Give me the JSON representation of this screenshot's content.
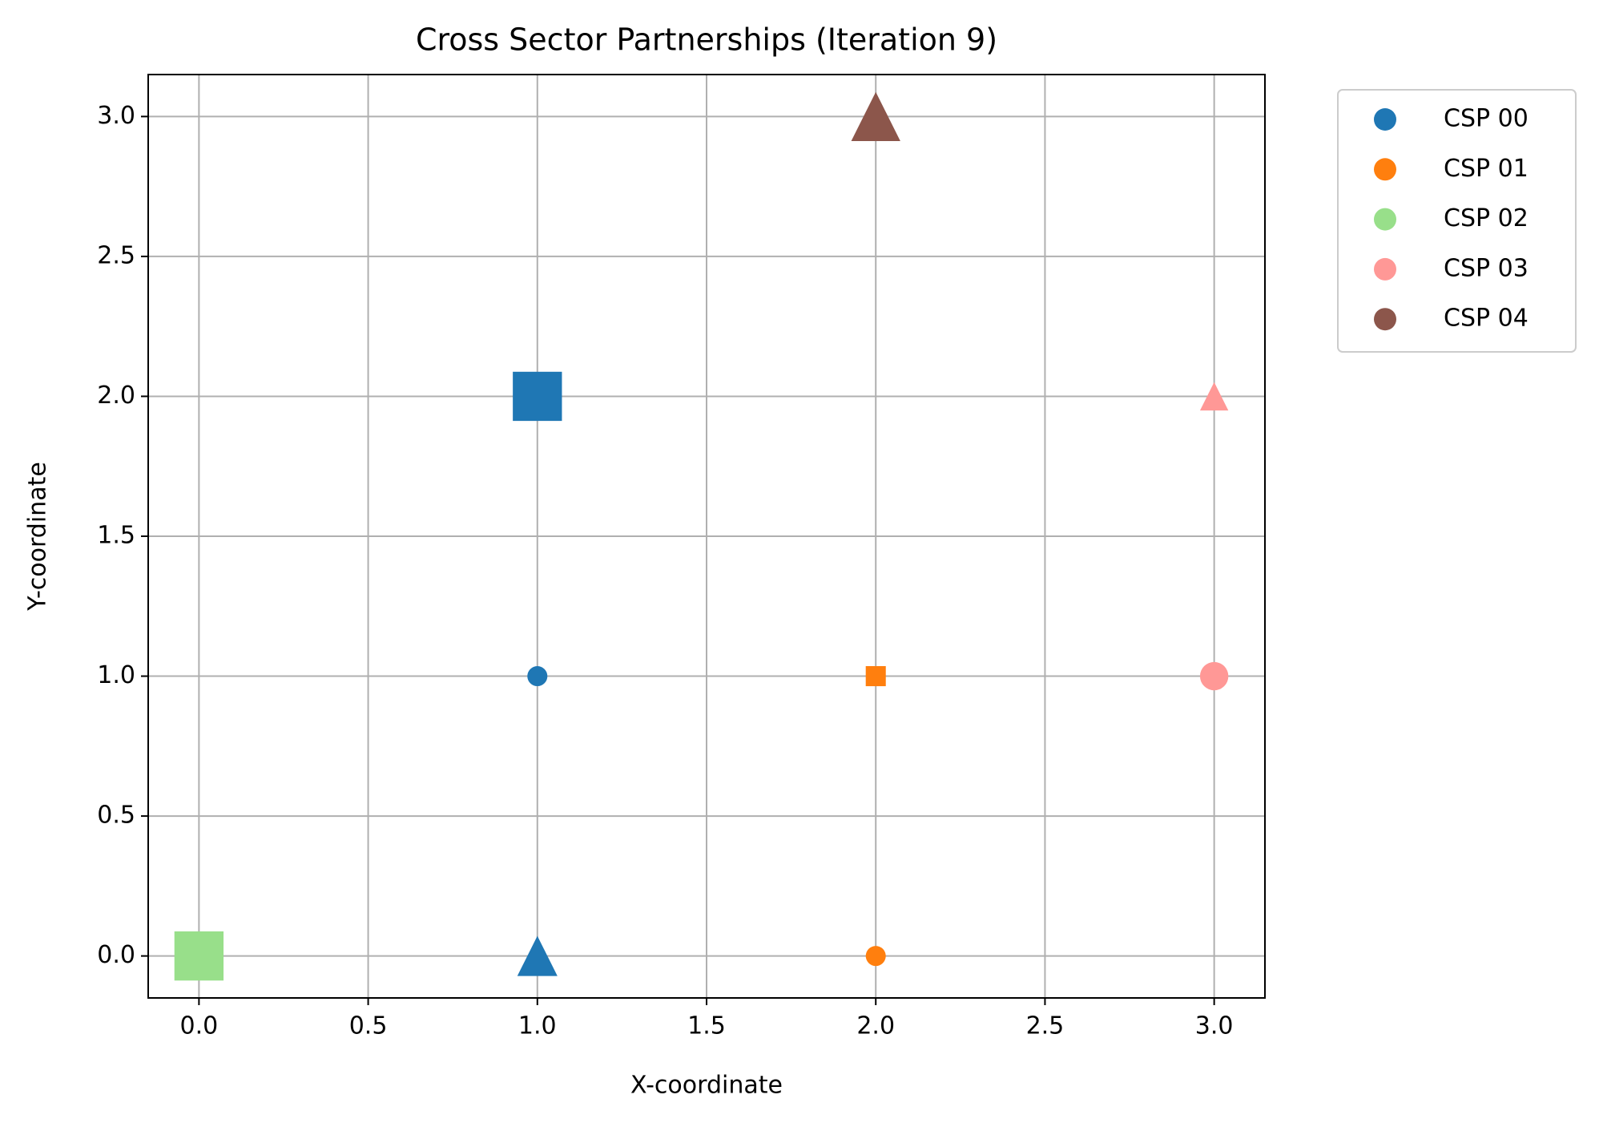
{
  "chart_data": {
    "type": "scatter",
    "title": "Cross Sector Partnerships (Iteration 9)",
    "x_label": "X-coordinate",
    "y_label": "Y-coordinate",
    "xlim": [
      -0.15,
      3.15
    ],
    "ylim": [
      -0.15,
      3.15
    ],
    "xticks": [
      {
        "value": 0,
        "label": "0.0"
      },
      0.5,
      {
        "value": 1,
        "label": "1.0"
      },
      1.5,
      {
        "value": 2,
        "label": "2.0"
      },
      2.5,
      {
        "value": 3,
        "label": "3.0"
      }
    ],
    "yticks": [
      {
        "value": 0,
        "label": "0.0"
      },
      0.5,
      {
        "value": 1,
        "label": "1.0"
      },
      1.5,
      {
        "value": 2,
        "label": "2.0"
      },
      2.5,
      {
        "value": 3,
        "label": "3.0"
      }
    ],
    "grid": true,
    "series": [
      {
        "name": "CSP 00",
        "color": "#1f77b4",
        "x": [
          1,
          1,
          1
        ],
        "values": [
          2,
          1,
          0
        ],
        "markers": [
          "s",
          "o",
          "^"
        ],
        "sizes": [
          300,
          50,
          200
        ]
      },
      {
        "name": "CSP 01",
        "color": "#ff7f0e",
        "x": [
          2,
          2
        ],
        "values": [
          1,
          0
        ],
        "markers": [
          "s",
          "o"
        ],
        "sizes": [
          50,
          50
        ]
      },
      {
        "name": "CSP 02",
        "color": "#98df8a",
        "x": [
          0
        ],
        "values": [
          0
        ],
        "markers": [
          "s"
        ],
        "sizes": [
          300
        ]
      },
      {
        "name": "CSP 03",
        "color": "#ff9896",
        "x": [
          3,
          3
        ],
        "values": [
          2,
          1
        ],
        "markers": [
          "^",
          "o"
        ],
        "sizes": [
          100,
          100
        ]
      },
      {
        "name": "CSP 04",
        "color": "#8c564b",
        "x": [
          2
        ],
        "values": [
          3
        ],
        "markers": [
          "^"
        ],
        "sizes": [
          300
        ]
      }
    ]
  }
}
